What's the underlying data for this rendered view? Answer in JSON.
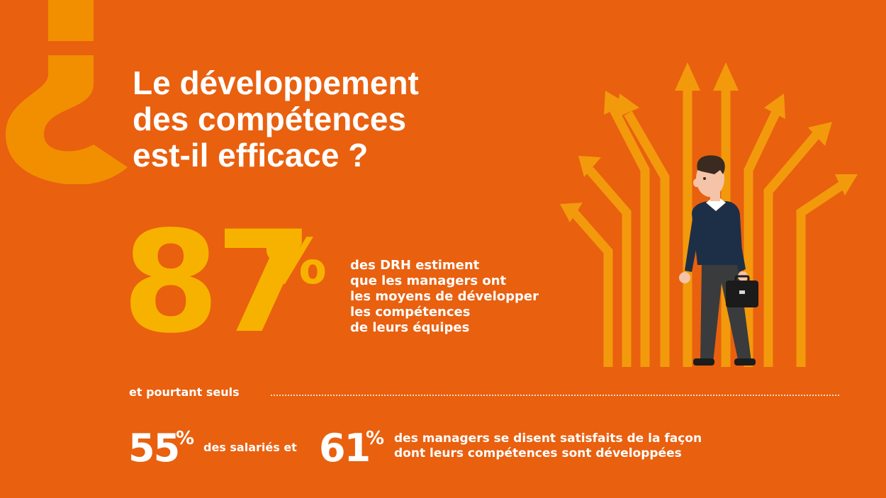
{
  "colors": {
    "background": "#e9600f",
    "accent_yellow": "#f7b200",
    "question_mark": "#f18f00",
    "arrows": "#f29a0c",
    "text": "#ffffff"
  },
  "title": {
    "lines": [
      "Le développement",
      "des compétences",
      "est-il efficace ?"
    ]
  },
  "stat_main": {
    "value": "87",
    "unit": "%",
    "description_lines": [
      "des DRH estiment",
      "que les managers ont",
      "les moyens de développer",
      "les compétences",
      "de leurs équipes"
    ]
  },
  "connector": "et pourtant seuls",
  "stat_employees": {
    "value": "55",
    "unit": "%",
    "text": "des salariés et"
  },
  "stat_managers": {
    "value": "61",
    "unit": "%",
    "text_lines": [
      "des managers se disent satisfaits de la façon",
      "dont leurs compétences sont développées"
    ]
  },
  "icons": {
    "decor": "inverted-question-mark-icon",
    "illustration": "businessman-with-arrows-icon",
    "bag": "briefcase-icon"
  }
}
